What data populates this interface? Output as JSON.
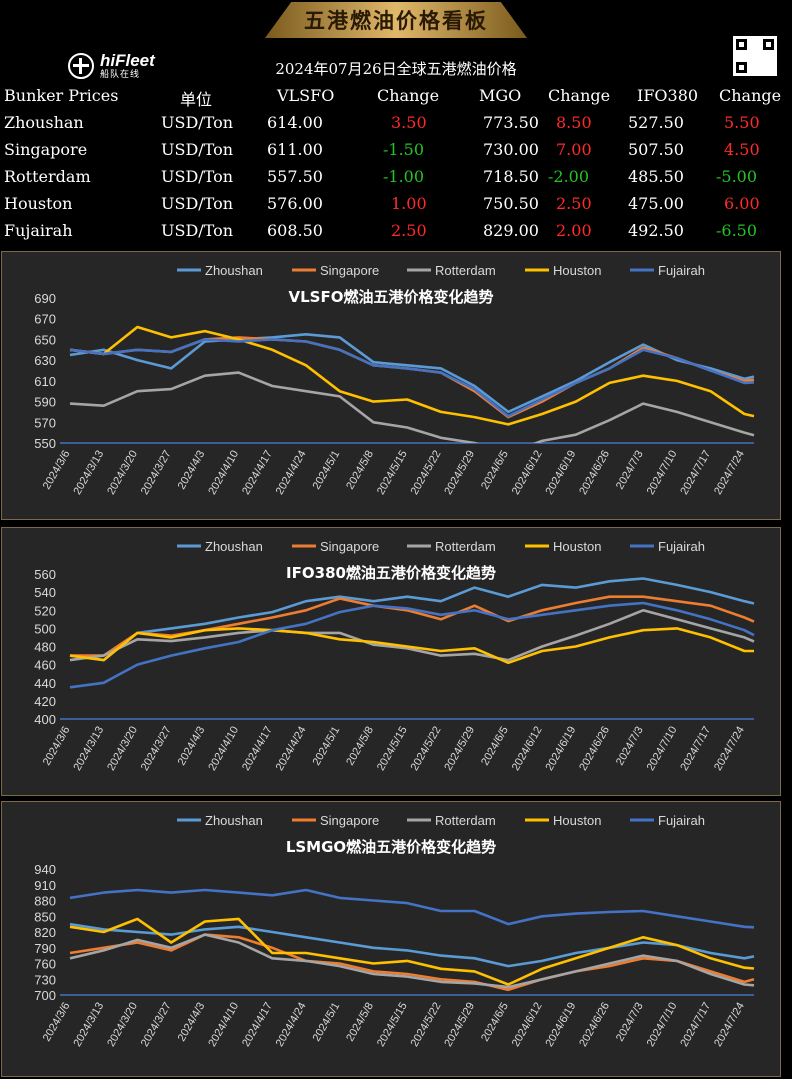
{
  "banner_title": "五港燃油价格看板",
  "logo": {
    "brand": "hiFleet",
    "sub": "船队在线"
  },
  "table": {
    "title": "2024年07月26日全球五港燃油价格",
    "headers": [
      "Bunker Prices",
      "单位",
      "VLSFO",
      "Change",
      "MGO",
      "Change",
      "IFO380",
      "Change"
    ],
    "rows": [
      {
        "port": "Zhoushan",
        "unit": "USD/Ton",
        "vlsfo": "614.00",
        "vlsfo_chg": "3.50",
        "mgo": "773.50",
        "mgo_chg": "8.50",
        "ifo": "527.50",
        "ifo_chg": "5.50"
      },
      {
        "port": "Singapore",
        "unit": "USD/Ton",
        "vlsfo": "611.00",
        "vlsfo_chg": "-1.50",
        "mgo": "730.00",
        "mgo_chg": "7.00",
        "ifo": "507.50",
        "ifo_chg": "4.50"
      },
      {
        "port": "Rotterdam",
        "unit": "USD/Ton",
        "vlsfo": "557.50",
        "vlsfo_chg": "-1.00",
        "mgo": "718.50",
        "mgo_chg": "-2.00",
        "ifo": "485.50",
        "ifo_chg": "-5.00"
      },
      {
        "port": "Houston",
        "unit": "USD/Ton",
        "vlsfo": "576.00",
        "vlsfo_chg": "1.00",
        "mgo": "750.50",
        "mgo_chg": "2.50",
        "ifo": "475.00",
        "ifo_chg": "6.00"
      },
      {
        "port": "Fujairah",
        "unit": "USD/Ton",
        "vlsfo": "608.50",
        "vlsfo_chg": "2.50",
        "mgo": "829.00",
        "mgo_chg": "2.00",
        "ifo": "492.50",
        "ifo_chg": "-6.50"
      }
    ]
  },
  "colors": {
    "Zhoushan": "#5b9bd5",
    "Singapore": "#ed7d31",
    "Rotterdam": "#a5a5a5",
    "Houston": "#ffc000",
    "Fujairah": "#4472c4",
    "up": "#ff2a2a",
    "down": "#22c422",
    "panel_bg": "#262626",
    "panel_border": "#7a6a4a"
  },
  "chart_data": [
    {
      "type": "line",
      "title": "VLSFO燃油五港价格变化趋势",
      "legend_position": "top",
      "grid": false,
      "ylim": [
        550,
        690
      ],
      "yticks": [
        550,
        570,
        590,
        610,
        630,
        650,
        670,
        690
      ],
      "x_ticks": [
        "2024/3/6",
        "2024/3/13",
        "2024/3/20",
        "2024/3/27",
        "2024/4/3",
        "2024/4/10",
        "2024/4/17",
        "2024/4/24",
        "2024/5/1",
        "2024/5/8",
        "2024/5/15",
        "2024/5/22",
        "2024/5/29",
        "2024/6/5",
        "2024/6/12",
        "2024/6/19",
        "2024/6/26",
        "2024/7/3",
        "2024/7/10",
        "2024/7/17",
        "2024/7/24"
      ],
      "x": [
        "2024/3/6",
        "2024/3/13",
        "2024/3/20",
        "2024/3/27",
        "2024/4/3",
        "2024/4/10",
        "2024/4/17",
        "2024/4/24",
        "2024/5/1",
        "2024/5/8",
        "2024/5/15",
        "2024/5/22",
        "2024/5/29",
        "2024/6/5",
        "2024/6/12",
        "2024/6/19",
        "2024/6/26",
        "2024/7/3",
        "2024/7/10",
        "2024/7/17",
        "2024/7/24",
        "2024/7/26"
      ],
      "series": [
        {
          "name": "Zhoushan",
          "values": [
            635,
            640,
            630,
            622,
            648,
            650,
            652,
            655,
            652,
            628,
            625,
            622,
            605,
            580,
            595,
            610,
            628,
            645,
            630,
            622,
            612,
            614
          ]
        },
        {
          "name": "Singapore",
          "values": [
            640,
            636,
            640,
            638,
            650,
            652,
            650,
            648,
            640,
            625,
            622,
            618,
            600,
            575,
            590,
            608,
            622,
            642,
            632,
            620,
            610,
            611
          ]
        },
        {
          "name": "Rotterdam",
          "values": [
            588,
            586,
            600,
            602,
            615,
            618,
            605,
            600,
            595,
            570,
            565,
            555,
            550,
            540,
            552,
            558,
            572,
            588,
            580,
            570,
            560,
            557.5
          ]
        },
        {
          "name": "Houston",
          "values": [
            640,
            636,
            662,
            652,
            658,
            650,
            640,
            625,
            600,
            590,
            592,
            580,
            575,
            568,
            578,
            590,
            608,
            615,
            610,
            600,
            578,
            576
          ]
        },
        {
          "name": "Fujairah",
          "values": [
            640,
            636,
            640,
            638,
            650,
            648,
            650,
            648,
            640,
            625,
            622,
            618,
            602,
            576,
            592,
            608,
            622,
            640,
            632,
            620,
            608,
            608.5
          ]
        }
      ]
    },
    {
      "type": "line",
      "title": "IFO380燃油五港价格变化趋势",
      "legend_position": "top",
      "grid": false,
      "ylim": [
        400,
        560
      ],
      "yticks": [
        400,
        420,
        440,
        460,
        480,
        500,
        520,
        540,
        560
      ],
      "x_ticks": [
        "2024/3/6",
        "2024/3/13",
        "2024/3/20",
        "2024/3/27",
        "2024/4/3",
        "2024/4/10",
        "2024/4/17",
        "2024/4/24",
        "2024/5/1",
        "2024/5/8",
        "2024/5/15",
        "2024/5/22",
        "2024/5/29",
        "2024/6/5",
        "2024/6/12",
        "2024/6/19",
        "2024/6/26",
        "2024/7/3",
        "2024/7/10",
        "2024/7/17",
        "2024/7/24"
      ],
      "x": [
        "2024/3/6",
        "2024/3/13",
        "2024/3/20",
        "2024/3/27",
        "2024/4/3",
        "2024/4/10",
        "2024/4/17",
        "2024/4/24",
        "2024/5/1",
        "2024/5/8",
        "2024/5/15",
        "2024/5/22",
        "2024/5/29",
        "2024/6/5",
        "2024/6/12",
        "2024/6/19",
        "2024/6/26",
        "2024/7/3",
        "2024/7/10",
        "2024/7/17",
        "2024/7/24",
        "2024/7/26"
      ],
      "series": [
        {
          "name": "Zhoushan",
          "values": [
            470,
            465,
            495,
            500,
            505,
            512,
            518,
            530,
            535,
            530,
            535,
            530,
            545,
            535,
            548,
            545,
            552,
            555,
            548,
            540,
            530,
            527.5
          ]
        },
        {
          "name": "Singapore",
          "values": [
            470,
            470,
            495,
            492,
            498,
            505,
            512,
            520,
            533,
            525,
            520,
            510,
            525,
            508,
            520,
            528,
            535,
            535,
            530,
            525,
            512,
            507.5
          ]
        },
        {
          "name": "Rotterdam",
          "values": [
            465,
            470,
            488,
            486,
            490,
            495,
            498,
            495,
            495,
            482,
            478,
            470,
            472,
            465,
            480,
            492,
            505,
            520,
            510,
            500,
            490,
            485.5
          ]
        },
        {
          "name": "Houston",
          "values": [
            470,
            465,
            495,
            490,
            498,
            500,
            498,
            495,
            488,
            485,
            480,
            475,
            478,
            462,
            475,
            480,
            490,
            498,
            500,
            490,
            475,
            475
          ]
        },
        {
          "name": "Fujairah",
          "values": [
            435,
            440,
            460,
            470,
            478,
            485,
            498,
            505,
            518,
            525,
            522,
            515,
            520,
            510,
            515,
            520,
            525,
            528,
            520,
            510,
            498,
            492.5
          ]
        }
      ]
    },
    {
      "type": "line",
      "title": "LSMGO燃油五港价格变化趋势",
      "legend_position": "top",
      "grid": false,
      "ylim": [
        700,
        940
      ],
      "yticks": [
        700,
        730,
        760,
        790,
        820,
        850,
        880,
        910,
        940
      ],
      "x_ticks": [
        "2024/3/6",
        "2024/3/13",
        "2024/3/20",
        "2024/3/27",
        "2024/4/3",
        "2024/4/10",
        "2024/4/17",
        "2024/4/24",
        "2024/5/1",
        "2024/5/8",
        "2024/5/15",
        "2024/5/22",
        "2024/5/29",
        "2024/6/5",
        "2024/6/12",
        "2024/6/19",
        "2024/6/26",
        "2024/7/3",
        "2024/7/10",
        "2024/7/17",
        "2024/7/24"
      ],
      "x": [
        "2024/3/6",
        "2024/3/13",
        "2024/3/20",
        "2024/3/27",
        "2024/4/3",
        "2024/4/10",
        "2024/4/17",
        "2024/4/24",
        "2024/5/1",
        "2024/5/8",
        "2024/5/15",
        "2024/5/22",
        "2024/5/29",
        "2024/6/5",
        "2024/6/12",
        "2024/6/19",
        "2024/6/26",
        "2024/7/3",
        "2024/7/10",
        "2024/7/17",
        "2024/7/24",
        "2024/7/26"
      ],
      "series": [
        {
          "name": "Zhoushan",
          "values": [
            835,
            825,
            820,
            815,
            825,
            830,
            820,
            810,
            800,
            790,
            785,
            775,
            770,
            755,
            765,
            780,
            790,
            800,
            795,
            780,
            770,
            773.5
          ]
        },
        {
          "name": "Singapore",
          "values": [
            780,
            790,
            800,
            785,
            815,
            810,
            790,
            765,
            760,
            745,
            740,
            730,
            725,
            710,
            730,
            745,
            755,
            770,
            765,
            745,
            725,
            730
          ]
        },
        {
          "name": "Rotterdam",
          "values": [
            770,
            785,
            805,
            790,
            815,
            800,
            770,
            765,
            755,
            740,
            735,
            725,
            722,
            715,
            730,
            745,
            760,
            775,
            765,
            740,
            720,
            718.5
          ]
        },
        {
          "name": "Houston",
          "values": [
            830,
            820,
            845,
            800,
            840,
            845,
            780,
            780,
            770,
            760,
            765,
            750,
            745,
            720,
            750,
            770,
            790,
            810,
            795,
            770,
            752,
            750.5
          ]
        },
        {
          "name": "Fujairah",
          "values": [
            885,
            895,
            900,
            895,
            900,
            895,
            890,
            900,
            885,
            880,
            875,
            860,
            860,
            835,
            850,
            855,
            858,
            860,
            850,
            840,
            830,
            829
          ]
        }
      ]
    }
  ]
}
